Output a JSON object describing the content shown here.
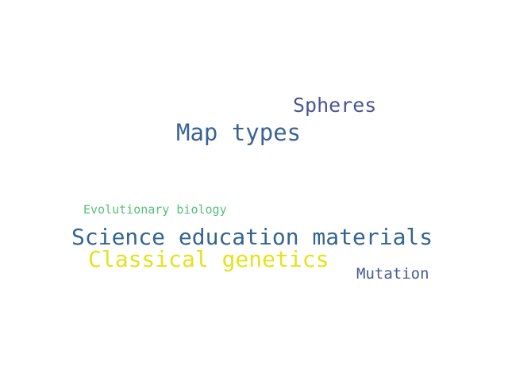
{
  "words": [
    {
      "text": "Spheres",
      "color": "#4a5497"
    },
    {
      "text": "Map types",
      "color": "#3b6495"
    },
    {
      "text": "Evolutionary biology",
      "color": "#56c07a"
    },
    {
      "text": "Science education materials",
      "color": "#33658f"
    },
    {
      "text": "Classical genetics",
      "color": "#e5e21f"
    },
    {
      "text": "Mutation",
      "color": "#465a93"
    }
  ]
}
